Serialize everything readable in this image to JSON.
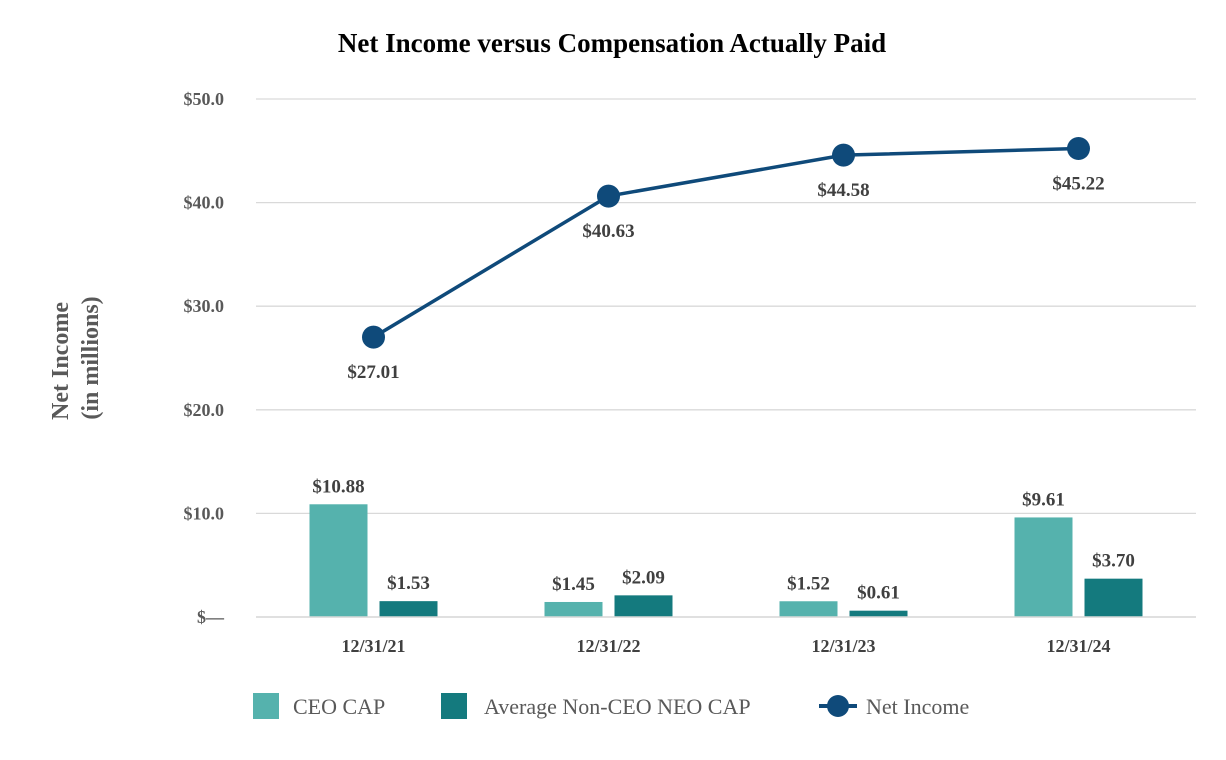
{
  "colors": {
    "ceo_cap": "#55b2ad",
    "neo_cap": "#147a7e",
    "net_income": "#0f4a7a",
    "grid": "#d9d9d9"
  },
  "chart_data": {
    "type": "bar+line",
    "title": "Net Income versus Compensation Actually Paid",
    "ylabel_lines": [
      "Net Income",
      "(in millions)"
    ],
    "xlabel": "",
    "ylim": [
      0,
      50
    ],
    "yticks": [
      {
        "value": 0,
        "label": "$—"
      },
      {
        "value": 10,
        "label": "$10.0"
      },
      {
        "value": 20,
        "label": "$20.0"
      },
      {
        "value": 30,
        "label": "$30.0"
      },
      {
        "value": 40,
        "label": "$40.0"
      },
      {
        "value": 50,
        "label": "$50.0"
      }
    ],
    "grid": true,
    "legend_position": "bottom",
    "categories": [
      "12/31/21",
      "12/31/22",
      "12/31/23",
      "12/31/24"
    ],
    "series": [
      {
        "name": "CEO CAP",
        "kind": "bar",
        "values": [
          10.88,
          1.45,
          1.52,
          9.61
        ],
        "labels": [
          "$10.88",
          "$1.45",
          "$1.52",
          "$9.61"
        ]
      },
      {
        "name": "Average Non-CEO NEO CAP",
        "kind": "bar",
        "values": [
          1.53,
          2.09,
          0.61,
          3.7
        ],
        "labels": [
          "$1.53",
          "$2.09",
          "$0.61",
          "$3.70"
        ]
      },
      {
        "name": "Net Income",
        "kind": "line",
        "values": [
          27.01,
          40.63,
          44.58,
          45.22
        ],
        "labels": [
          "$27.01",
          "$40.63",
          "$44.58",
          "$45.22"
        ]
      }
    ]
  }
}
